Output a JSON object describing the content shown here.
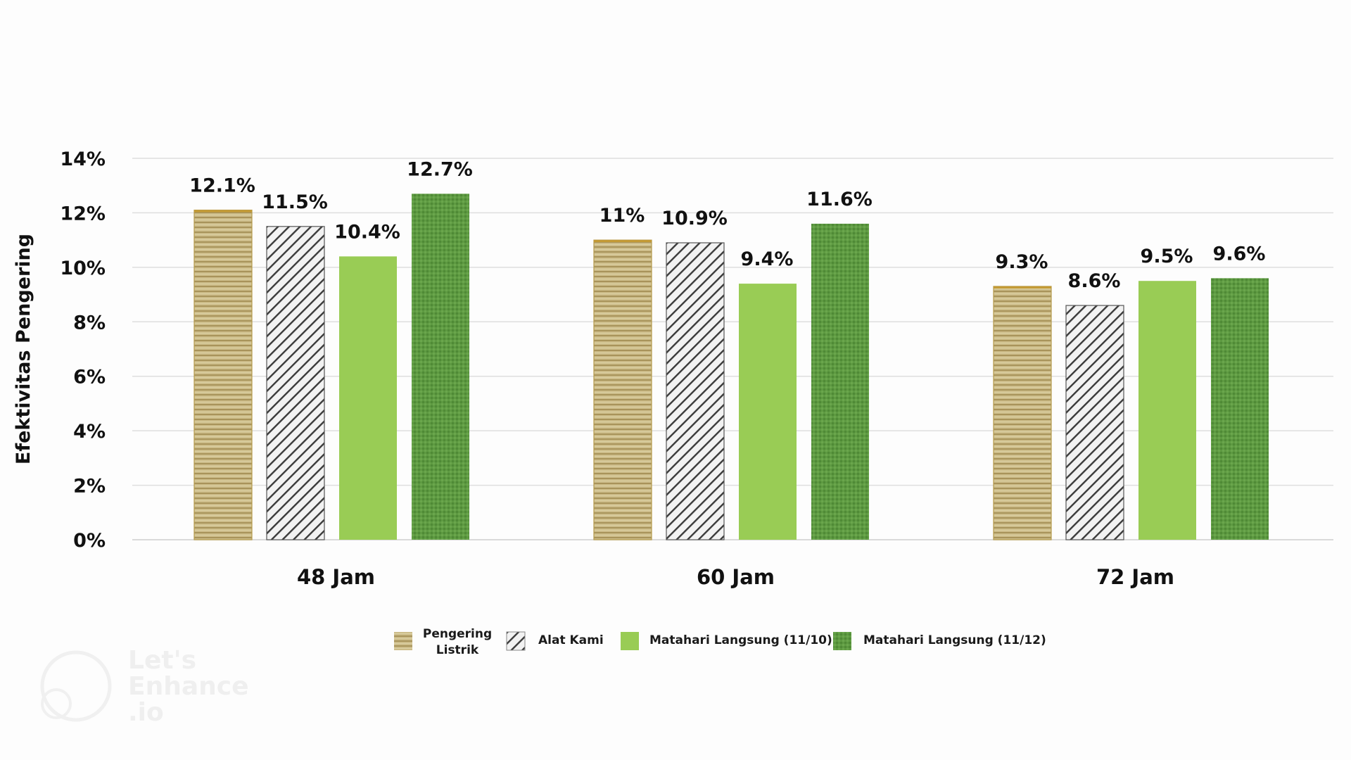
{
  "chart_data": {
    "type": "bar",
    "categories": [
      "48 Jam",
      "60 Jam",
      "72 Jam"
    ],
    "series": [
      {
        "name": "Pengering Listrik",
        "values": [
          12.1,
          11.0,
          9.3
        ],
        "labels": [
          "12.1%",
          "11%",
          "9.3%"
        ],
        "color": "#c8b882",
        "pattern": "horizontal-stripes"
      },
      {
        "name": "Alat Kami",
        "values": [
          11.5,
          10.9,
          8.6
        ],
        "labels": [
          "11.5%",
          "10.9%",
          "8.6%"
        ],
        "color": "#eeeeee",
        "pattern": "diagonal-hatch"
      },
      {
        "name": "Matahari Langsung (11/10)",
        "values": [
          10.4,
          9.4,
          9.5
        ],
        "labels": [
          "10.4%",
          "9.4%",
          "9.5%"
        ],
        "color": "#99cc55",
        "pattern": "solid"
      },
      {
        "name": "Matahari Langsung (11/12)",
        "values": [
          12.7,
          11.6,
          9.6
        ],
        "labels": [
          "12.7%",
          "11.6%",
          "9.6%"
        ],
        "color": "#5c9440",
        "pattern": "texture"
      }
    ],
    "ylabel": "Efektivitas Pengering",
    "ylim": [
      0,
      14
    ],
    "yticks": [
      "0%",
      "2%",
      "4%",
      "6%",
      "8%",
      "10%",
      "12%",
      "14%"
    ],
    "grid": true,
    "legend_position": "bottom-center",
    "legend_lines": [
      [
        "Pengering",
        "Listrik"
      ],
      [
        "Alat Kami"
      ],
      [
        "Matahari Langsung (11/10)"
      ],
      [
        "Matahari Langsung (11/12)"
      ]
    ]
  },
  "watermark": {
    "lines": [
      "Let's",
      "Enhance",
      ".io"
    ]
  }
}
